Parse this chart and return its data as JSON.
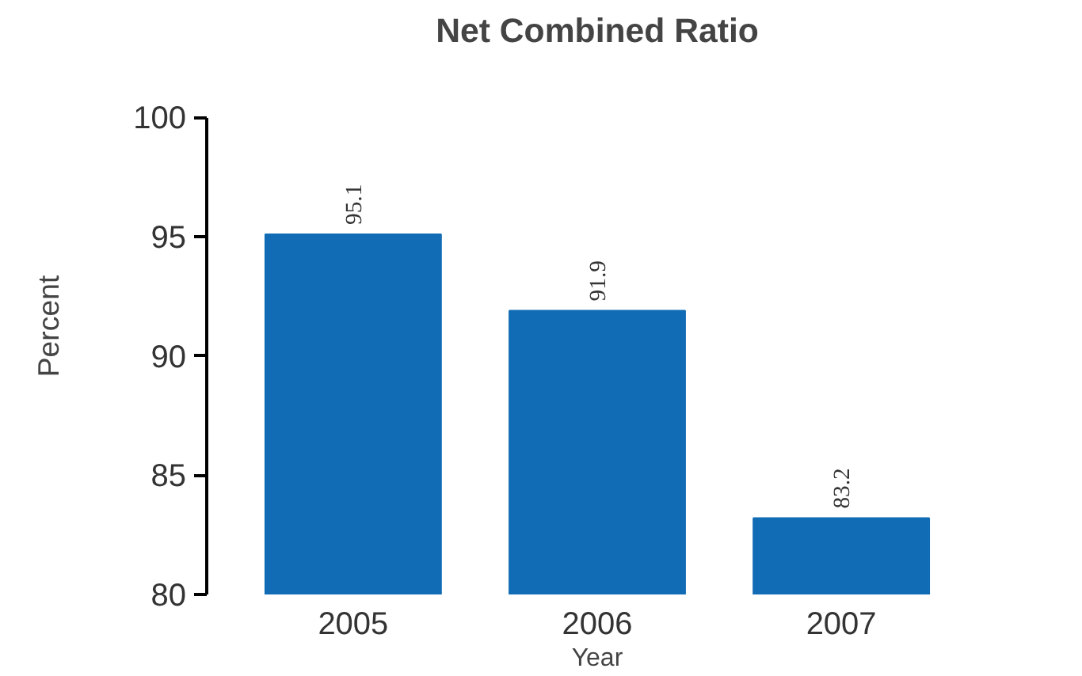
{
  "chart_data": {
    "type": "bar",
    "title": "Net Combined Ratio",
    "xlabel": "Year",
    "ylabel": "Percent",
    "categories": [
      "2005",
      "2006",
      "2007"
    ],
    "values": [
      95.1,
      91.9,
      83.2
    ],
    "color": "#116cb5",
    "ylim": [
      80,
      100
    ],
    "yticks": [
      80,
      85,
      90,
      95,
      100
    ],
    "grid": false,
    "data_labels": true
  }
}
